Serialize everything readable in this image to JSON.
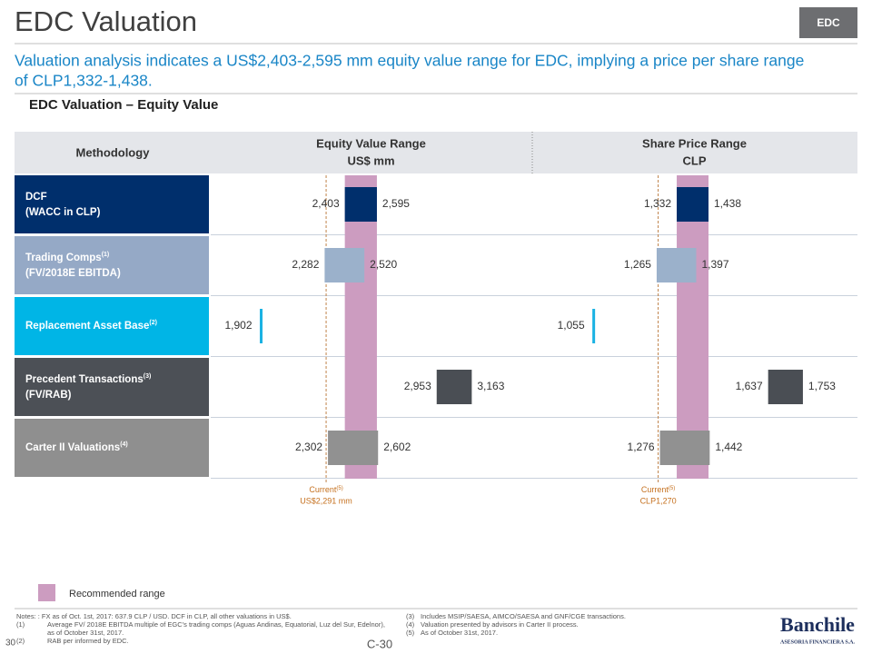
{
  "header": {
    "title": "EDC Valuation",
    "tag": "EDC",
    "subtitle_lines": [
      "Valuation analysis indicates a US$2,403-2,595 mm equity value range for EDC, implying a price per share range",
      "of CLP1,332-1,438."
    ],
    "section": "EDC Valuation – Equity Value"
  },
  "table": {
    "methodology_header": "Methodology",
    "rows": [
      {
        "name": "DCF",
        "sub": "(WACC in CLP)",
        "color": "#002f6c"
      },
      {
        "name": "Trading Comps",
        "note": "(1)",
        "sub": "(FV/2018E EBITDA)",
        "color": "#95a9c6"
      },
      {
        "name": "Replacement Asset Base",
        "note": "(2)",
        "color": "#00b5e6"
      },
      {
        "name": "Precedent Transactions",
        "note": "(3)",
        "sub": "(FV/RAB)",
        "color": "#4c5056"
      },
      {
        "name": "Carter II Valuations",
        "note": "(4)",
        "color": "#8f8f8f"
      }
    ]
  },
  "chart_data": [
    {
      "type": "range_bar",
      "title": "Equity Value Range",
      "unit": "US$ mm",
      "xlim": [
        1600,
        3520
      ],
      "low": [
        2403,
        2282,
        1902,
        2953,
        2302
      ],
      "high": [
        2595,
        2520,
        null,
        3163,
        2602
      ],
      "low_labels": [
        "2,403",
        "2,282",
        "1,902",
        "2,953",
        "2,302"
      ],
      "high_labels": [
        "2,595",
        "2,520",
        null,
        "3,163",
        "2,602"
      ],
      "colors": [
        "#002f6c",
        "#9bb1cb",
        "#1ab2e3",
        "#4a4e54",
        "#919191"
      ],
      "recommended_color": "#cc9cc0",
      "current": {
        "value": 2291,
        "label": "US$2,291 mm",
        "title": "Current",
        "note": "(5)"
      }
    },
    {
      "type": "range_bar",
      "title": "Share Price Range",
      "unit": "CLP",
      "xlim": [
        853,
        1929
      ],
      "low": [
        1332,
        1265,
        1055,
        1637,
        1276
      ],
      "high": [
        1438,
        1397,
        null,
        1753,
        1442
      ],
      "low_labels": [
        "1,332",
        "1,265",
        "1,055",
        "1,637",
        "1,276"
      ],
      "high_labels": [
        "1,438",
        "1,397",
        null,
        "1,753",
        "1,442"
      ],
      "colors": [
        "#002f6c",
        "#9bb1cb",
        "#1ab2e3",
        "#4a4e54",
        "#919191"
      ],
      "recommended_color": "#cc9cc0",
      "current": {
        "value": 1270,
        "label": "CLP1,270",
        "title": "Current",
        "note": "(5)"
      }
    }
  ],
  "legend": {
    "label": "Recommended range",
    "color": "#cc9cc0"
  },
  "footer": {
    "notes": "Notes: : FX as of Oct. 1st, 2017: 637.9 CLP / USD. DCF in CLP, all other valuations in US$.",
    "footnotes": [
      {
        "n": "(1)",
        "lines": [
          "Average FV/ 2018E EBITDA multiple of EGC's trading comps (Aguas Andinas, Equatorial, Luz del Sur, Edelnor),",
          "as of October 31st, 2017."
        ]
      },
      {
        "n": "(2)",
        "lines": [
          "RAB per informed by EDC."
        ]
      },
      {
        "n": "(3)",
        "lines": [
          "Includes MSIP/SAESA, AIMCO/SAESA and GNF/CGE transactions."
        ]
      },
      {
        "n": "(4)",
        "lines": [
          "Valuation presented by advisors in Carter II process."
        ]
      },
      {
        "n": "(5)",
        "lines": [
          "As of October 31st, 2017."
        ]
      }
    ],
    "page": "30",
    "code": "C-30",
    "logo": "Banchile",
    "logo_sub": "ASESORIA FINANCIERA S.A."
  }
}
